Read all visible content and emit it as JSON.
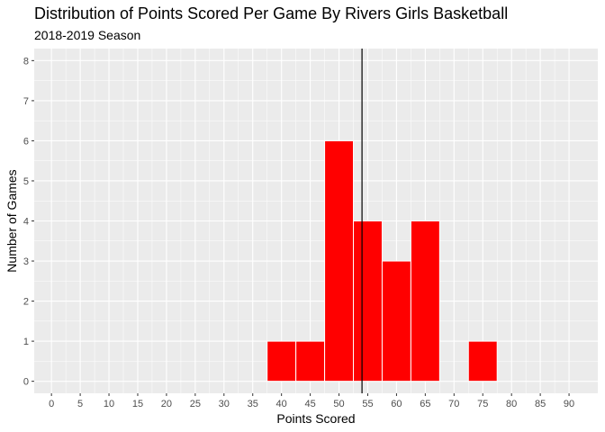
{
  "chart_data": {
    "type": "bar",
    "title": "Distribution of Points Scored Per Game By Rivers Girls Basketball",
    "subtitle": "2018-2019 Season",
    "xlabel": "Points Scored",
    "ylabel": "Number of Games",
    "bin_width": 5,
    "bins": [
      {
        "center": 40,
        "count": 1
      },
      {
        "center": 45,
        "count": 1
      },
      {
        "center": 50,
        "count": 6
      },
      {
        "center": 55,
        "count": 4
      },
      {
        "center": 60,
        "count": 3
      },
      {
        "center": 65,
        "count": 4
      },
      {
        "center": 75,
        "count": 1
      }
    ],
    "reference_line_x": 54,
    "xlim": [
      -3,
      95
    ],
    "ylim": [
      -0.3,
      8.3
    ],
    "x_ticks": [
      0,
      5,
      10,
      15,
      20,
      25,
      30,
      35,
      40,
      45,
      50,
      55,
      60,
      65,
      70,
      75,
      80,
      85,
      90
    ],
    "y_ticks": [
      0,
      1,
      2,
      3,
      4,
      5,
      6,
      7,
      8
    ],
    "bar_color": "#FF0000",
    "bar_outline_color": "#FFFFFF",
    "reference_line_color": "#000000",
    "panel_background": "#EBEBEB",
    "grid": true
  }
}
